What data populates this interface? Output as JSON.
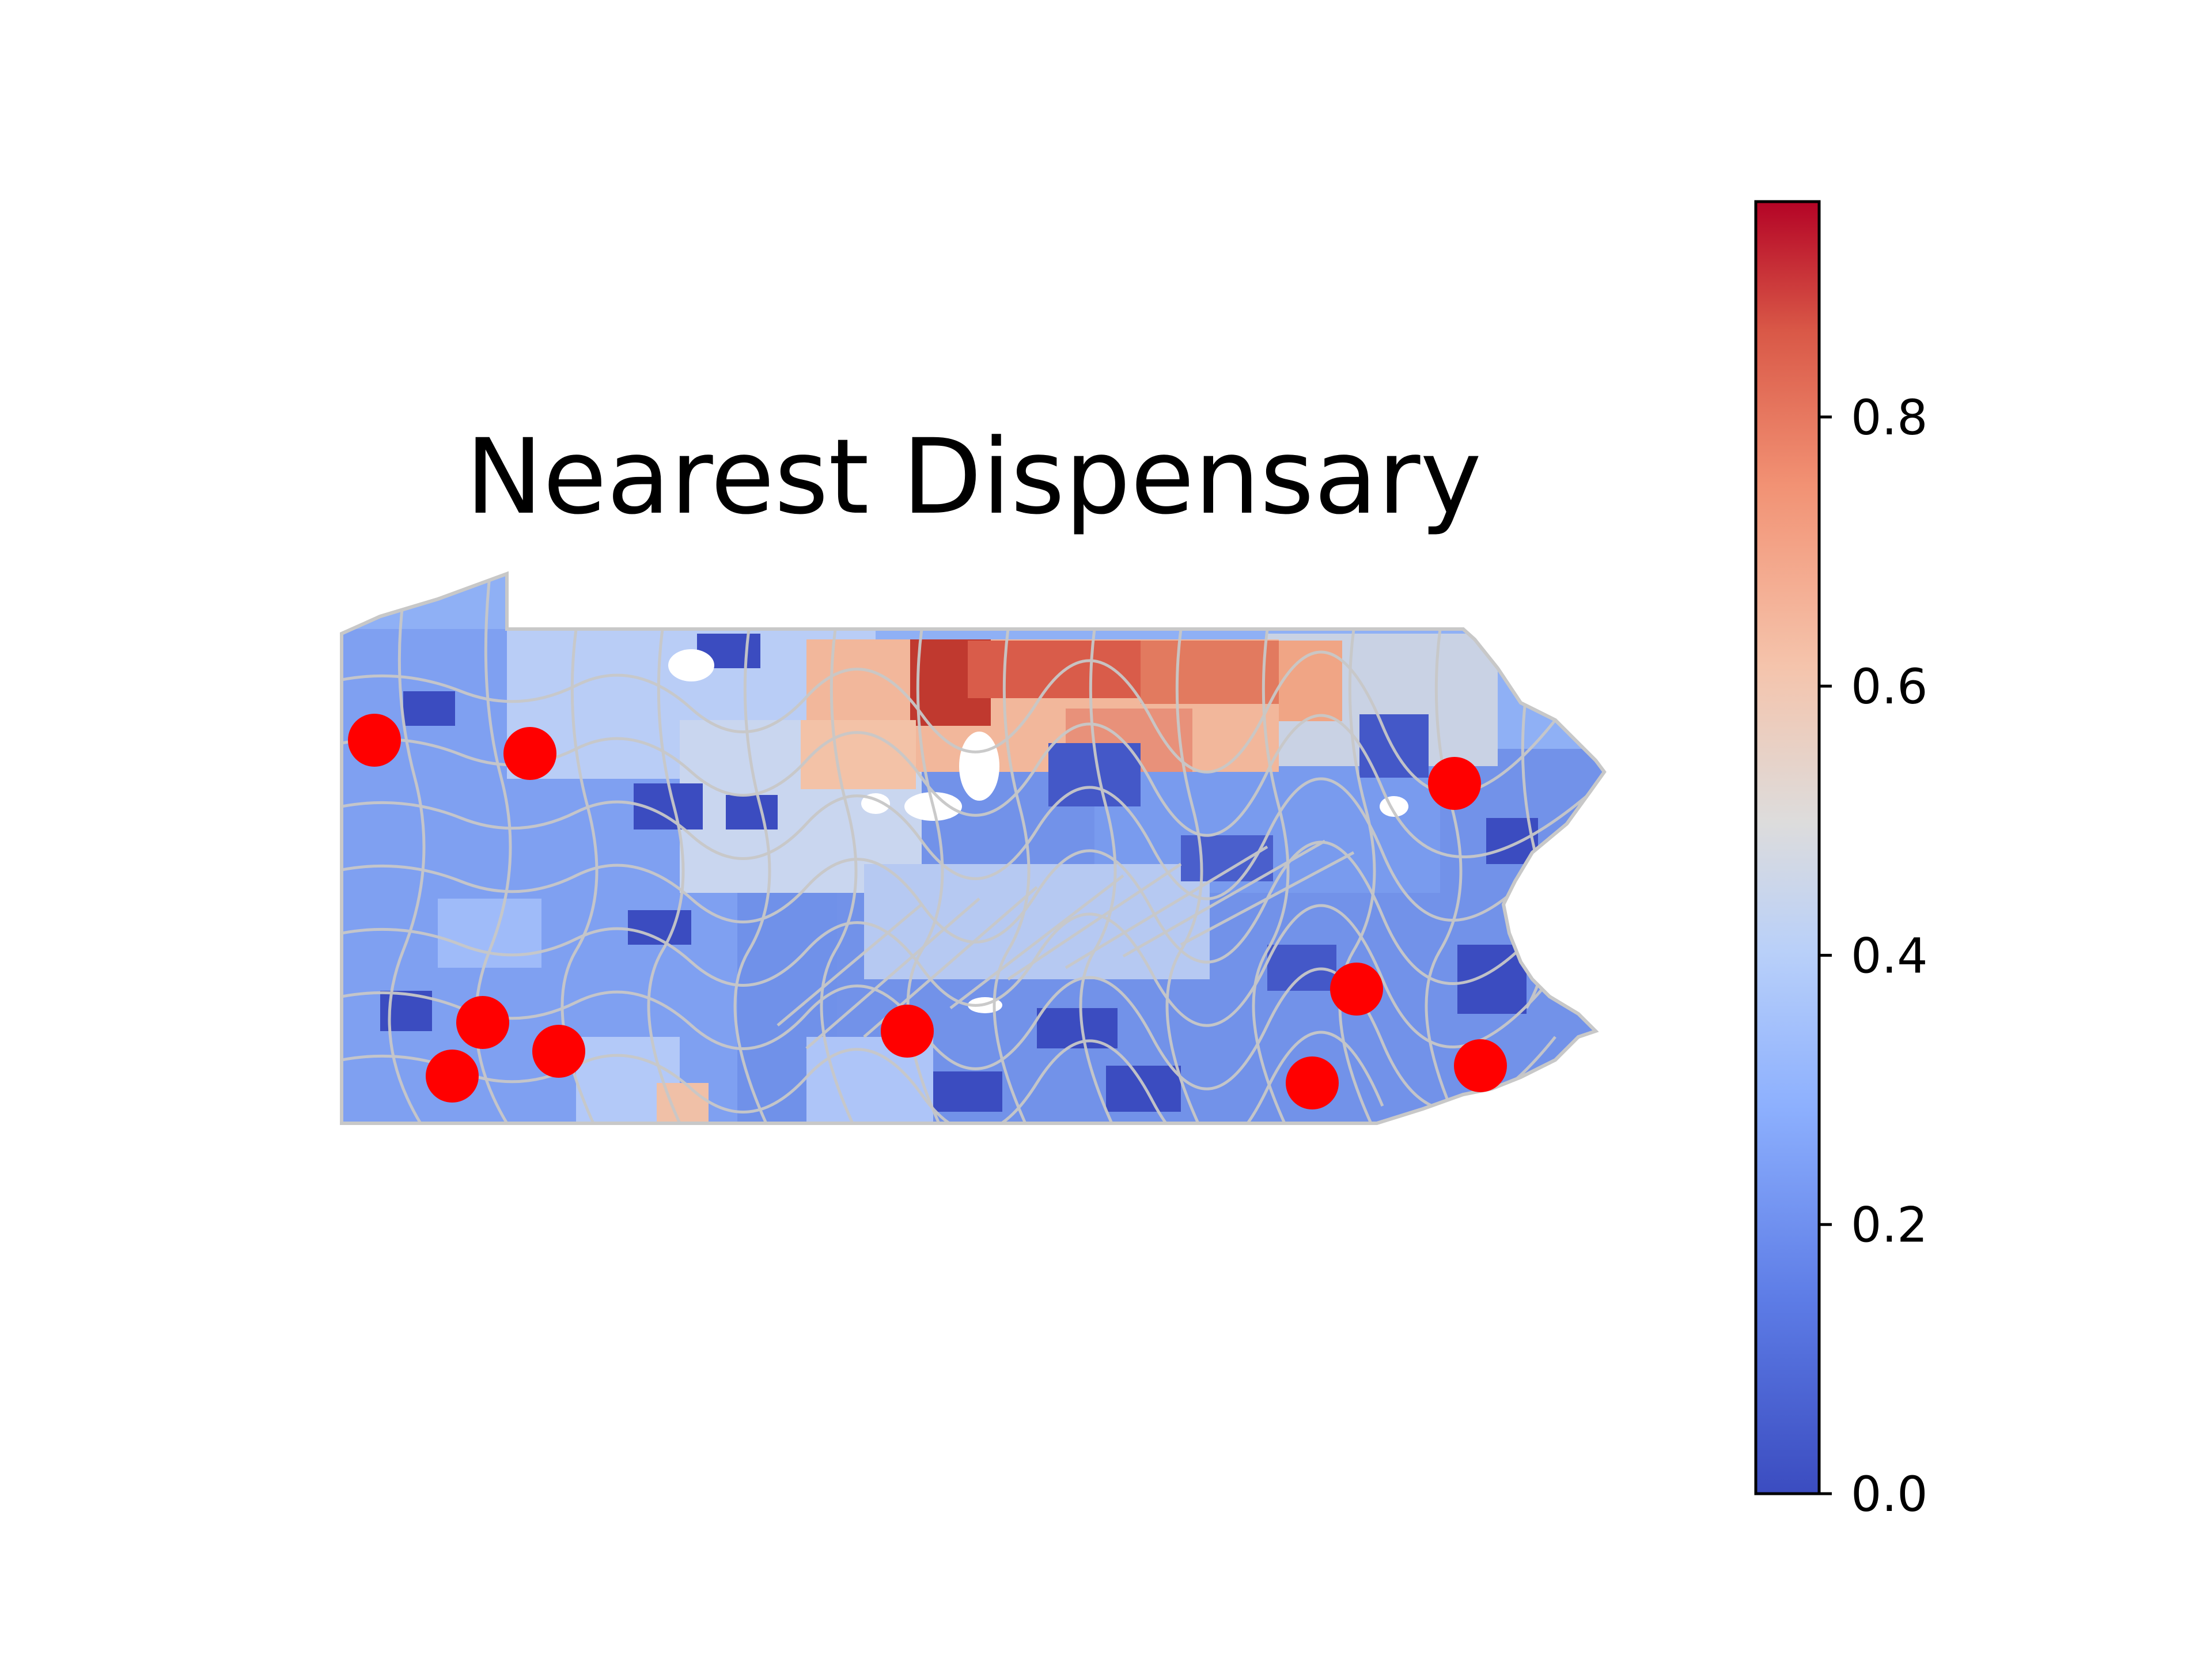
{
  "map": {
    "title": "Nearest Dispensary",
    "region_fill": "#cfd3dc",
    "region_outline": "#c8c8c8",
    "dispensary_marker_color": "#ff0000",
    "dispensary_marker_count": 10
  },
  "colorbar": {
    "colormap": "coolwarm",
    "range": [
      0.0,
      0.96
    ],
    "ticks": [
      "0.0",
      "0.2",
      "0.4",
      "0.6",
      "0.8"
    ],
    "low_color": "#3b4cc0",
    "mid_color": "#dddddd",
    "high_color": "#b40426"
  }
}
